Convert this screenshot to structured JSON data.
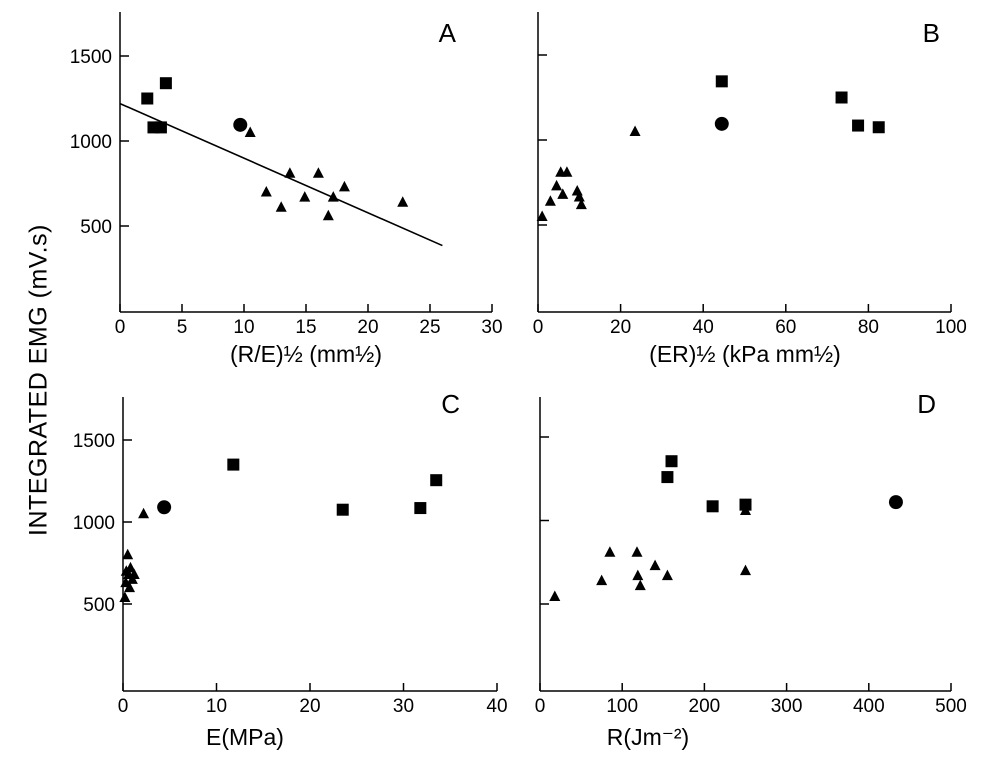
{
  "figure": {
    "ylabel": "INTEGRATED EMG (mV.s)"
  },
  "chart_data": [
    {
      "panel": "A",
      "type": "scatter",
      "xlabel": "(R/E)½ (mm½)",
      "ylabel": "INTEGRATED EMG (mV.s)",
      "xlim": [
        0,
        30
      ],
      "ylim": [
        0,
        1750
      ],
      "xticks": [
        0,
        5,
        10,
        15,
        20,
        25,
        30
      ],
      "yticks": [
        500,
        1000,
        1500
      ],
      "ytick_labels": [
        "500",
        "1000",
        "1500"
      ],
      "grid": false,
      "series": [
        {
          "marker": "square",
          "points": [
            [
              2.2,
              1250
            ],
            [
              2.7,
              1080
            ],
            [
              3.3,
              1080
            ],
            [
              3.7,
              1340
            ]
          ]
        },
        {
          "marker": "circle",
          "points": [
            [
              9.7,
              1095
            ]
          ]
        },
        {
          "marker": "triangle",
          "points": [
            [
              10.5,
              1050
            ],
            [
              11.8,
              700
            ],
            [
              13.0,
              610
            ],
            [
              13.7,
              810
            ],
            [
              14.9,
              670
            ],
            [
              16.0,
              810
            ],
            [
              16.8,
              560
            ],
            [
              17.2,
              670
            ],
            [
              18.1,
              730
            ],
            [
              22.8,
              640
            ]
          ]
        }
      ],
      "fit_line": {
        "x": [
          0,
          26
        ],
        "y": [
          1220,
          385
        ]
      }
    },
    {
      "panel": "B",
      "type": "scatter",
      "xlabel": "(ER)½ (kPa mm½)",
      "xlim": [
        0,
        100
      ],
      "ylim": [
        0,
        1750
      ],
      "xticks": [
        0,
        20,
        40,
        60,
        80,
        100
      ],
      "yticks": [
        500,
        1000,
        1500
      ],
      "ytick_labels": [
        "",
        "",
        ""
      ],
      "grid": false,
      "series": [
        {
          "marker": "square",
          "points": [
            [
              44.5,
              1345
            ],
            [
              73.5,
              1250
            ],
            [
              77.5,
              1085
            ],
            [
              82.5,
              1075
            ]
          ]
        },
        {
          "marker": "circle",
          "points": [
            [
              44.5,
              1095
            ]
          ]
        },
        {
          "marker": "triangle",
          "points": [
            [
              1,
              550
            ],
            [
              3,
              640
            ],
            [
              4.5,
              730
            ],
            [
              5.5,
              810
            ],
            [
              6,
              680
            ],
            [
              7,
              810
            ],
            [
              9.5,
              700
            ],
            [
              10,
              665
            ],
            [
              10.5,
              620
            ],
            [
              23.5,
              1050
            ]
          ]
        }
      ]
    },
    {
      "panel": "C",
      "type": "scatter",
      "xlabel": "E(MPa)",
      "xlim": [
        0,
        40
      ],
      "ylim": [
        0,
        1750
      ],
      "xticks": [
        0,
        10,
        20,
        30,
        40
      ],
      "yticks": [
        500,
        1000,
        1500
      ],
      "ytick_labels": [
        "500",
        "1000",
        "1500"
      ],
      "grid": false,
      "series": [
        {
          "marker": "square",
          "points": [
            [
              11.8,
              1350
            ],
            [
              23.5,
              1075
            ],
            [
              31.8,
              1085
            ],
            [
              33.5,
              1255
            ]
          ]
        },
        {
          "marker": "circle",
          "points": [
            [
              4.4,
              1090
            ]
          ]
        },
        {
          "marker": "triangle",
          "points": [
            [
              2.2,
              1050
            ],
            [
              0.2,
              540
            ],
            [
              0.3,
              630
            ],
            [
              0.35,
              700
            ],
            [
              0.5,
              800
            ],
            [
              0.6,
              680
            ],
            [
              0.7,
              600
            ],
            [
              0.8,
              720
            ],
            [
              1.0,
              650
            ],
            [
              1.2,
              680
            ]
          ]
        }
      ]
    },
    {
      "panel": "D",
      "type": "scatter",
      "xlabel": "R(Jm⁻²)",
      "xlim": [
        0,
        500
      ],
      "ylim": [
        0,
        1750
      ],
      "xticks": [
        0,
        100,
        200,
        300,
        400,
        500
      ],
      "yticks": [
        500,
        1000,
        1500
      ],
      "ytick_labels": [
        "",
        "",
        ""
      ],
      "grid": false,
      "series": [
        {
          "marker": "square",
          "points": [
            [
              155,
              1260
            ],
            [
              160,
              1355
            ],
            [
              210,
              1085
            ],
            [
              250,
              1095
            ]
          ]
        },
        {
          "marker": "circle",
          "points": [
            [
              433,
              1110
            ]
          ]
        },
        {
          "marker": "triangle",
          "points": [
            [
              18,
              545
            ],
            [
              75,
              640
            ],
            [
              85,
              810
            ],
            [
              118,
              810
            ],
            [
              119,
              670
            ],
            [
              122,
              610
            ],
            [
              140,
              730
            ],
            [
              155,
              670
            ],
            [
              250,
              700
            ],
            [
              250,
              1060
            ]
          ]
        }
      ]
    }
  ]
}
